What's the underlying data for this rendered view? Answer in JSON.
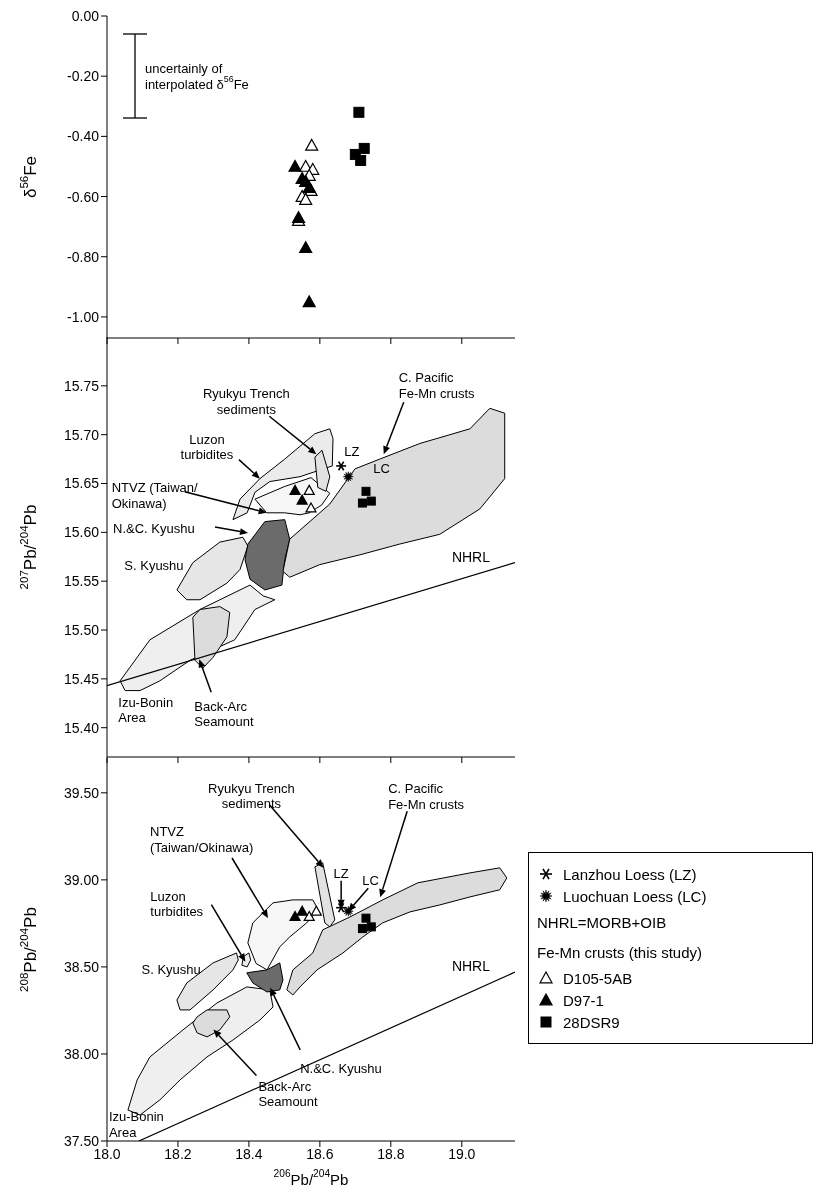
{
  "chart_data": [
    {
      "type": "scatter",
      "ylabel": "δ$^{56}$Fe",
      "tick_labels": "y",
      "xlim": [
        18.0,
        19.15
      ],
      "xticks": [
        {
          "value": 18.0,
          "label": null
        },
        {
          "value": 18.2,
          "label": null
        },
        {
          "value": 18.4,
          "label": null
        },
        {
          "value": 18.6,
          "label": null
        },
        {
          "value": 18.8,
          "label": null
        },
        {
          "value": 19.0,
          "label": null
        }
      ],
      "ylim": [
        -1.07,
        0
      ],
      "yticks": [
        {
          "value": 0,
          "label": "0.00"
        },
        {
          "value": -0.2,
          "label": "-0.20"
        },
        {
          "value": -0.4,
          "label": "-0.40"
        },
        {
          "value": -0.6,
          "label": "-0.60"
        },
        {
          "value": -0.8,
          "label": "-0.80"
        },
        {
          "value": -1.0,
          "label": "-1.00"
        }
      ],
      "annotations": [
        "uncertainly of\ninterpolated δ$^{56}$Fe"
      ],
      "series": [
        {
          "type": "scatter",
          "marker": "triangle",
          "color": "#ffffff",
          "x": [
            18.577,
            18.56,
            18.58,
            18.57,
            18.575,
            18.55,
            18.56,
            18.54
          ],
          "values": [
            -0.43,
            -0.5,
            -0.51,
            -0.53,
            -0.58,
            -0.6,
            -0.61,
            -0.68
          ]
        },
        {
          "type": "scatter",
          "marker": "triangle",
          "color": "#000000",
          "x": [
            18.53,
            18.55,
            18.56,
            18.57,
            18.54,
            18.56,
            18.57
          ],
          "values": [
            -0.5,
            -0.54,
            -0.55,
            -0.57,
            -0.67,
            -0.77,
            -0.95
          ]
        },
        {
          "type": "scatter",
          "marker": "square",
          "color": "#000000",
          "x": [
            18.71,
            18.725,
            18.7,
            18.715
          ],
          "values": [
            -0.32,
            -0.44,
            -0.46,
            -0.48
          ]
        }
      ]
    },
    {
      "type": "scatter",
      "ylabel": "$^{207}$Pb/$^{204}$Pb",
      "tick_labels": "y",
      "xlim": [
        18.0,
        19.15
      ],
      "xticks": [
        {
          "value": 18.0,
          "label": null
        },
        {
          "value": 18.2,
          "label": null
        },
        {
          "value": 18.4,
          "label": null
        },
        {
          "value": 18.6,
          "label": null
        },
        {
          "value": 18.8,
          "label": null
        },
        {
          "value": 19.0,
          "label": null
        }
      ],
      "ylim": [
        15.37,
        15.8
      ],
      "yticks": [
        {
          "value": 15.4,
          "label": "15.40"
        },
        {
          "value": 15.45,
          "label": "15.45"
        },
        {
          "value": 15.5,
          "label": "15.50"
        },
        {
          "value": 15.55,
          "label": "15.55"
        },
        {
          "value": 15.6,
          "label": "15.60"
        },
        {
          "value": 15.65,
          "label": "15.65"
        },
        {
          "value": 15.7,
          "label": "15.70"
        },
        {
          "value": 15.75,
          "label": "15.75"
        }
      ],
      "annotations": [
        {
          "text": "Ryukyu Trench\nsediments",
          "x": 18.59,
          "y": 15.68
        },
        {
          "text": "Luzon\nturbidites",
          "x": 18.431,
          "y": 15.655
        },
        {
          "text": "NTVZ (Taiwan/\nOkinawa)",
          "x": 18.45,
          "y": 15.62
        },
        "N.&C. Kyushu",
        {
          "text": "S. Kyushu",
          "x": 18.23,
          "y": 15.57
        },
        {
          "text": "Izu-Bonin\nArea",
          "x": 18.06,
          "y": 15.44
        },
        {
          "text": "Back-Arc\nSeamount",
          "x": 18.26,
          "y": 15.47
        },
        {
          "text": "C. Pacific\nFe-Mn crusts",
          "x": 18.78,
          "y": 15.68
        },
        {
          "text": "LZ",
          "x": 18.66,
          "y": 15.668
        },
        {
          "text": "LC",
          "x": 18.68,
          "y": 15.657
        }
      ],
      "series": [
        {
          "type": "area",
          "color": "#efefef",
          "x": [
            18.037,
            18.121,
            18.262,
            18.403,
            18.44,
            18.473,
            18.417,
            18.36,
            18.234,
            18.149,
            18.093,
            18.051
          ],
          "values": [
            15.448,
            15.49,
            15.521,
            15.546,
            15.535,
            15.531,
            15.521,
            15.49,
            15.469,
            15.448,
            15.438,
            15.438
          ]
        },
        {
          "type": "area",
          "color": "#dcdcdc",
          "x": [
            18.242,
            18.262,
            18.318,
            18.346,
            18.338,
            18.299,
            18.27,
            18.248
          ],
          "values": [
            15.513,
            15.521,
            15.524,
            15.518,
            15.493,
            15.472,
            15.461,
            15.469
          ]
        },
        {
          "type": "area",
          "color": "#e6e6e6",
          "x": [
            18.197,
            18.242,
            18.318,
            18.383,
            18.397,
            18.375,
            18.338,
            18.262,
            18.225
          ],
          "values": [
            15.541,
            15.569,
            15.59,
            15.595,
            15.586,
            15.562,
            15.548,
            15.531,
            15.531
          ]
        },
        {
          "type": "area",
          "color": "#ebebeb",
          "x": [
            18.355,
            18.375,
            18.431,
            18.501,
            18.586,
            18.628,
            18.637,
            18.635,
            18.544,
            18.459,
            18.417,
            18.395
          ],
          "values": [
            15.613,
            15.634,
            15.655,
            15.675,
            15.701,
            15.706,
            15.696,
            15.668,
            15.657,
            15.652,
            15.641,
            15.62
          ]
        },
        {
          "type": "area",
          "color": "#f6f6f6",
          "x": [
            18.417,
            18.501,
            18.575,
            18.628,
            18.605,
            18.57,
            18.544,
            18.501,
            18.45
          ],
          "values": [
            15.634,
            15.647,
            15.656,
            15.64,
            15.628,
            15.62,
            15.618,
            15.62,
            15.62
          ]
        },
        {
          "type": "area",
          "color": "#6b6b6b",
          "x": [
            18.397,
            18.445,
            18.501,
            18.515,
            18.501,
            18.493,
            18.445,
            18.403,
            18.389
          ],
          "values": [
            15.588,
            15.611,
            15.613,
            15.593,
            15.572,
            15.546,
            15.541,
            15.552,
            15.572
          ]
        },
        {
          "type": "area",
          "color": "#dcdcdc",
          "x": [
            18.496,
            18.515,
            18.628,
            18.699,
            18.769,
            18.882,
            19.023,
            19.079,
            19.121,
            19.121,
            19.051,
            18.938,
            18.825,
            18.713,
            18.6,
            18.515
          ],
          "values": [
            15.56,
            15.593,
            15.629,
            15.665,
            15.675,
            15.691,
            15.706,
            15.727,
            15.722,
            15.655,
            15.624,
            15.598,
            15.588,
            15.577,
            15.567,
            15.554
          ]
        },
        {
          "type": "area",
          "color": "#e2e2e2",
          "x": [
            18.586,
            18.606,
            18.628,
            18.617,
            18.594
          ],
          "values": [
            15.677,
            15.684,
            15.657,
            15.642,
            15.646
          ]
        },
        {
          "type": "line",
          "name": "NHRL",
          "marker": "none",
          "color": "#000000",
          "x": [
            18.0,
            19.15
          ],
          "values": [
            15.443,
            15.569
          ]
        },
        {
          "type": "scatter",
          "marker": "triangle",
          "color": "#000000",
          "x": [
            18.53,
            18.55
          ],
          "values": [
            15.643,
            15.633
          ]
        },
        {
          "type": "scatter",
          "marker": "triangle",
          "color": "#ffffff",
          "x": [
            18.57,
            18.575
          ],
          "values": [
            15.643,
            15.625
          ]
        },
        {
          "type": "scatter",
          "marker": "square",
          "color": "#000000",
          "x": [
            18.72,
            18.745,
            18.73
          ],
          "values": [
            15.63,
            15.632,
            15.642
          ]
        },
        {
          "type": "scatter",
          "marker": "cross",
          "color": "#000000",
          "x": [
            18.66
          ],
          "values": [
            15.668
          ]
        },
        {
          "type": "scatter",
          "marker": "star",
          "color": "#000000",
          "x": [
            18.68
          ],
          "values": [
            15.657
          ]
        }
      ]
    },
    {
      "type": "scatter",
      "ylabel": "$^{208}$Pb/$^{204}$Pb",
      "xlabel": "$^{206}$Pb/$^{204}$Pb",
      "legend": "right",
      "legend_title": "Fe-Mn crusts (this study)",
      "xlim": [
        18.0,
        19.15
      ],
      "xticks": [
        {
          "value": 18.0,
          "label": "18.0"
        },
        {
          "value": 18.2,
          "label": "18.2"
        },
        {
          "value": 18.4,
          "label": "18.4"
        },
        {
          "value": 18.6,
          "label": "18.6"
        },
        {
          "value": 18.8,
          "label": "18.8"
        },
        {
          "value": 19.0,
          "label": "19.0"
        }
      ],
      "ylim": [
        37.5,
        39.7
      ],
      "yticks": [
        {
          "value": 37.5,
          "label": "37.50"
        },
        {
          "value": 38.0,
          "label": "38.00"
        },
        {
          "value": 38.5,
          "label": "38.50"
        },
        {
          "value": 39.0,
          "label": "39.00"
        },
        {
          "value": 39.5,
          "label": "39.50"
        }
      ],
      "annotations": [
        {
          "text": "Ryukyu Trench\nsediments",
          "x": 18.61,
          "y": 39.07
        },
        "NTVZ\n(Taiwan/Okinawa)",
        {
          "text": "Luzon\nturbidites",
          "x": 18.39,
          "y": 38.53
        },
        {
          "text": "S. Kyushu",
          "x": 18.27,
          "y": 38.49
        },
        {
          "text": "N.&C. Kyushu",
          "x": 18.46,
          "y": 38.38
        },
        {
          "text": "Back-Arc\nSeamount",
          "x": 18.3,
          "y": 38.14
        },
        {
          "text": "Izu-Bonin\nArea",
          "x": 18.09,
          "y": 37.85
        },
        {
          "text": "C. Pacific\nFe-Mn crusts",
          "x": 18.77,
          "y": 38.9
        },
        {
          "text": "LZ",
          "x": 18.66,
          "y": 38.84
        },
        {
          "text": "LC",
          "x": 18.68,
          "y": 38.82
        },
        "NHRL=MORB+OIB"
      ],
      "series": [
        {
          "type": "area",
          "color": "#efefef",
          "x": [
            18.085,
            18.121,
            18.214,
            18.31,
            18.394,
            18.459,
            18.468,
            18.431,
            18.355,
            18.282,
            18.206,
            18.149,
            18.093,
            18.059
          ],
          "values": [
            37.851,
            37.983,
            38.138,
            38.293,
            38.385,
            38.368,
            38.27,
            38.195,
            38.08,
            37.983,
            37.851,
            37.736,
            37.649,
            37.678
          ]
        },
        {
          "type": "area",
          "color": "#dcdcdc",
          "x": [
            18.254,
            18.282,
            18.338,
            18.346,
            18.318,
            18.282,
            18.254,
            18.242
          ],
          "values": [
            38.213,
            38.253,
            38.253,
            38.213,
            38.138,
            38.098,
            38.121,
            38.178
          ]
        },
        {
          "type": "area",
          "color": "#e6e6e6",
          "x": [
            18.197,
            18.225,
            18.299,
            18.365,
            18.37,
            18.355,
            18.299,
            18.234,
            18.206
          ],
          "values": [
            38.31,
            38.408,
            38.523,
            38.58,
            38.54,
            38.483,
            38.368,
            38.253,
            38.253
          ]
        },
        {
          "type": "area",
          "color": "#6b6b6b",
          "x": [
            18.394,
            18.451,
            18.487,
            18.496,
            18.487,
            18.451,
            18.411
          ],
          "values": [
            38.466,
            38.483,
            38.523,
            38.425,
            38.368,
            38.356,
            38.408
          ]
        },
        {
          "type": "area",
          "color": "#f6f6f6",
          "x": [
            18.411,
            18.468,
            18.524,
            18.58,
            18.595,
            18.563,
            18.515,
            18.487,
            18.451,
            18.42,
            18.397
          ],
          "values": [
            38.753,
            38.868,
            38.885,
            38.885,
            38.83,
            38.753,
            38.672,
            38.615,
            38.483,
            38.52,
            38.638
          ]
        },
        {
          "type": "area",
          "color": "#ebebeb",
          "x": [
            18.385,
            18.4,
            18.405,
            18.395,
            18.38
          ],
          "values": [
            38.56,
            38.58,
            38.54,
            38.5,
            38.51
          ]
        },
        {
          "type": "area",
          "color": "#dcdcdc",
          "x": [
            18.507,
            18.524,
            18.58,
            18.608,
            18.685,
            18.777,
            18.876,
            19.023,
            19.107,
            19.127,
            19.107,
            19.023,
            18.938,
            18.854,
            18.777,
            18.721,
            18.665,
            18.592,
            18.544,
            18.524
          ],
          "values": [
            38.368,
            38.483,
            38.58,
            38.713,
            38.787,
            38.885,
            38.983,
            39.04,
            39.069,
            39.011,
            38.943,
            38.902,
            38.856,
            38.816,
            38.753,
            38.672,
            38.58,
            38.483,
            38.385,
            38.339
          ]
        },
        {
          "type": "area",
          "color": "#e2e2e2",
          "x": [
            18.586,
            18.608,
            18.642,
            18.628,
            18.614
          ],
          "values": [
            39.075,
            39.098,
            38.77,
            38.73,
            38.753
          ]
        },
        {
          "type": "line",
          "name": "NHRL",
          "marker": "none",
          "color": "#000000",
          "x": [
            18.09,
            19.15
          ],
          "values": [
            37.5,
            38.47
          ]
        },
        {
          "type": "scatter",
          "name": "Lanzhou Loess (LZ)",
          "marker": "cross",
          "color": "#000000",
          "x": [
            18.66
          ],
          "values": [
            38.84
          ]
        },
        {
          "type": "scatter",
          "name": "Luochuan Loess (LC)",
          "marker": "star",
          "color": "#000000",
          "x": [
            18.68
          ],
          "values": [
            38.82
          ]
        },
        {
          "type": "scatter",
          "name": "D105-5AB",
          "marker": "triangle",
          "color": "#ffffff",
          "x": [
            18.57,
            18.59
          ],
          "values": [
            38.79,
            38.82
          ]
        },
        {
          "type": "scatter",
          "name": "D97-1",
          "marker": "triangle",
          "color": "#000000",
          "x": [
            18.53,
            18.55
          ],
          "values": [
            38.79,
            38.82
          ]
        },
        {
          "type": "scatter",
          "name": "28DSR9",
          "marker": "square",
          "color": "#000000",
          "x": [
            18.72,
            18.745,
            18.73
          ],
          "values": [
            38.72,
            38.73,
            38.78
          ]
        }
      ]
    }
  ]
}
